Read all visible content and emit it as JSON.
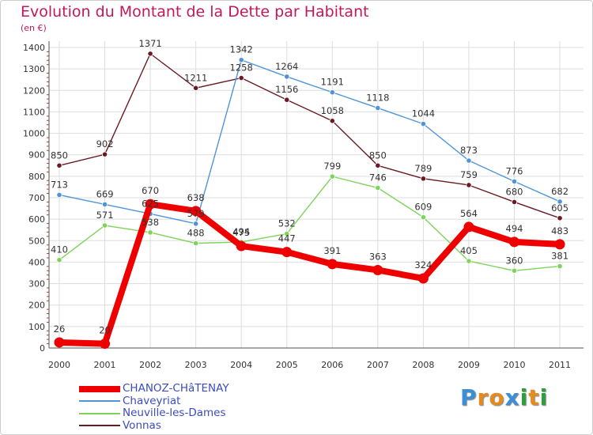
{
  "title": "Evolution du Montant de la Dette par Habitant",
  "unit_label": "(en €)",
  "logo": {
    "letters": [
      "P",
      "r",
      "o",
      "x",
      "i",
      "t",
      "i"
    ],
    "colors": [
      "#3b8fd6",
      "#e58a1f",
      "#e58a1f",
      "#3b8fd6",
      "#2e9e3f",
      "#e58a1f",
      "#2e9e3f"
    ]
  },
  "chart_data": {
    "type": "line",
    "title": "Evolution du Montant de la Dette par Habitant",
    "ylabel": "(en €)",
    "xlabel": "",
    "ylim": [
      0,
      1400
    ],
    "y_ticks": [
      0,
      100,
      200,
      300,
      400,
      500,
      600,
      700,
      800,
      900,
      1000,
      1100,
      1200,
      1300,
      1400
    ],
    "categories": [
      "2000",
      "2001",
      "2002",
      "2003",
      "2004",
      "2005",
      "2006",
      "2007",
      "2008",
      "2009",
      "2010",
      "2011"
    ],
    "grid": true,
    "legend_position": "bottom-left",
    "series": [
      {
        "name": "Vonnas",
        "color": "#6b1a24",
        "values": [
          850,
          902,
          1371,
          1211,
          1258,
          1156,
          1058,
          850,
          789,
          759,
          680,
          605
        ]
      },
      {
        "name": "Neuville-les-Dames",
        "color": "#7ed35a",
        "values": [
          410,
          571,
          538,
          488,
          494,
          532,
          799,
          746,
          609,
          405,
          360,
          381
        ]
      },
      {
        "name": "Chaveyriat",
        "color": "#4f95d6",
        "values": [
          713,
          669,
          625,
          579,
          1342,
          1264,
          1191,
          1118,
          1044,
          873,
          776,
          682
        ]
      },
      {
        "name": "CHANOZ-CHâTENAY",
        "color": "#ee0000",
        "values": [
          26,
          20,
          670,
          638,
          475,
          447,
          391,
          363,
          324,
          564,
          494,
          483
        ]
      }
    ],
    "legend_order": [
      "CHANOZ-CHâTENAY",
      "Chaveyriat",
      "Neuville-les-Dames",
      "Vonnas"
    ]
  }
}
